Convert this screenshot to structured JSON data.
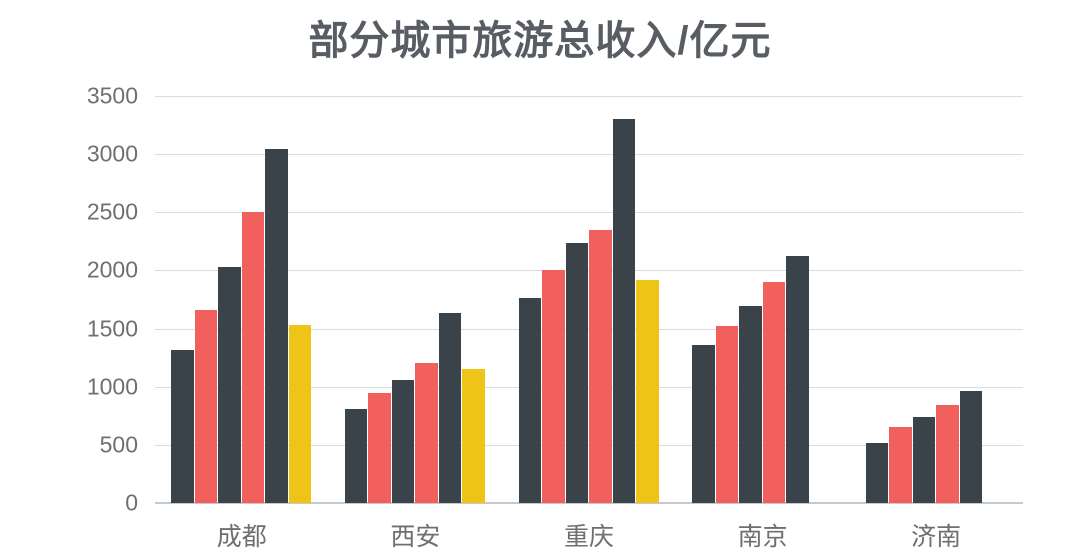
{
  "title": "部分城市旅游总收入/亿元",
  "chart_data": {
    "type": "bar",
    "title": "部分城市旅游总收入/亿元",
    "xlabel": "",
    "ylabel": "",
    "categories": [
      "成都",
      "西安",
      "重庆",
      "南京",
      "济南"
    ],
    "series": [
      {
        "color": "#3a434a",
        "values": [
          1320,
          810,
          1760,
          1360,
          520
        ]
      },
      {
        "color": "#f2605e",
        "values": [
          1660,
          945,
          2000,
          1520,
          650
        ]
      },
      {
        "color": "#3a434a",
        "values": [
          2030,
          1060,
          2240,
          1690,
          740
        ]
      },
      {
        "color": "#f2605e",
        "values": [
          2500,
          1200,
          2350,
          1900,
          840
        ]
      },
      {
        "color": "#3a434a",
        "values": [
          3040,
          1630,
          3300,
          2120,
          960
        ]
      },
      {
        "color": "#eec417",
        "values": [
          1530,
          1150,
          1920,
          null,
          null
        ]
      }
    ],
    "ylim": [
      0,
      3500
    ],
    "ytick_step": 500,
    "y_tick_labels": [
      "0",
      "500",
      "1000",
      "1500",
      "2000",
      "2500",
      "3000",
      "3500"
    ],
    "grid": true,
    "legend": false
  },
  "colors": {
    "dark_bar": "#3a434a",
    "red_bar": "#f2605e",
    "yellow_bar": "#eec417",
    "gridline": "#dcdcdc",
    "axis_line": "#c5c8cc",
    "title_text": "#585d64",
    "tick_text": "#6f6f6f",
    "background": "#ffffff"
  }
}
